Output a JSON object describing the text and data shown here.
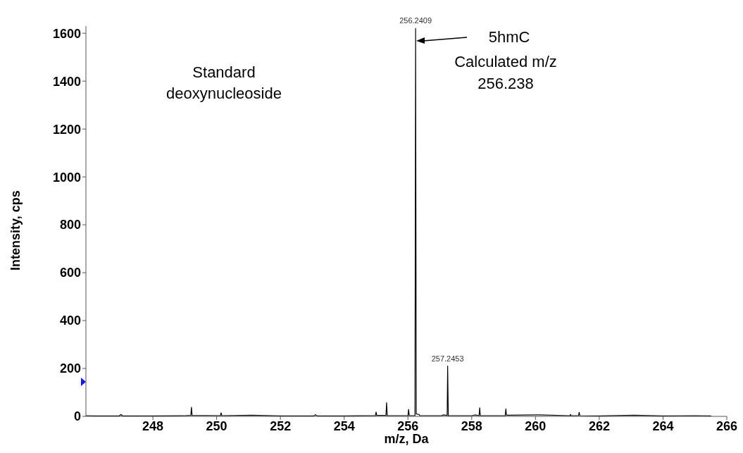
{
  "chart_data": {
    "type": "line",
    "xlabel": "m/z, Da",
    "ylabel": "Intensity, cps",
    "xlim": [
      245.9,
      266
    ],
    "xticks": [
      248,
      250,
      252,
      254,
      256,
      258,
      260,
      262,
      264,
      266
    ],
    "ylim": [
      0,
      1630
    ],
    "yticks": [
      0,
      200,
      400,
      600,
      800,
      1000,
      1200,
      1400,
      1600
    ],
    "marker": "none",
    "line_style": "solid",
    "annotations": [
      "Standard deoxynucleoside",
      {
        "text": "256.2409",
        "x": 256.24,
        "y": 1620
      },
      {
        "text": "257.2453",
        "x": 257.245,
        "y": 210
      },
      "5hmC",
      "Calculated m/z",
      "256.238"
    ],
    "series": [
      {
        "color": "#000000",
        "x": [
          245.9,
          246.2,
          246.95,
          247.0,
          247.05,
          248.0,
          249.0,
          249.19,
          249.21,
          249.23,
          250.12,
          250.14,
          250.16,
          251.1,
          252.0,
          253.05,
          253.1,
          253.15,
          254.0,
          254.98,
          255.0,
          255.02,
          255.31,
          255.33,
          255.35,
          256.0,
          256.02,
          256.04,
          256.22,
          256.24,
          256.26,
          256.35,
          256.37,
          257.05,
          257.1,
          257.23,
          257.245,
          257.265,
          258.0,
          258.1,
          258.23,
          258.25,
          258.27,
          259.05,
          259.07,
          259.09,
          260.1,
          261.08,
          261.1,
          261.12,
          261.35,
          261.37,
          261.39,
          262.0,
          263.1,
          264.0,
          265.0,
          265.5
        ],
        "values": [
          3,
          2,
          2,
          8,
          2,
          2,
          3,
          4,
          38,
          4,
          3,
          15,
          3,
          5,
          2,
          2,
          7,
          2,
          2,
          3,
          18,
          4,
          4,
          57,
          3,
          3,
          29,
          3,
          3,
          1620,
          10,
          8,
          3,
          3,
          6,
          4,
          210,
          3,
          3,
          6,
          3,
          36,
          3,
          3,
          31,
          5,
          6,
          3,
          8,
          3,
          3,
          17,
          3,
          2,
          5,
          2,
          3,
          2
        ]
      }
    ]
  }
}
